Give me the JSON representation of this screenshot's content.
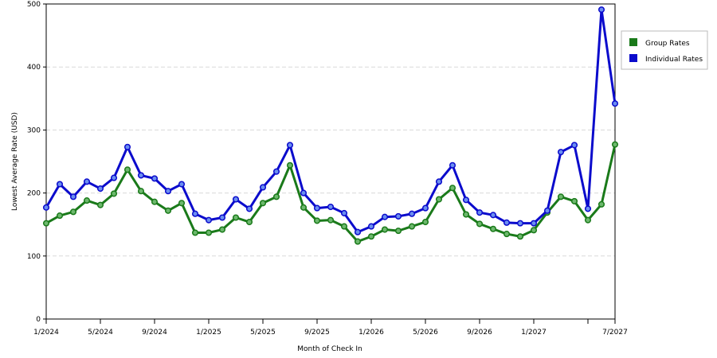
{
  "chart_data": {
    "type": "line",
    "xlabel": "Month of Check In",
    "ylabel": "Lowest Average Rate (USD)",
    "ylim": [
      0,
      500
    ],
    "yticks": [
      0,
      100,
      200,
      300,
      400,
      500
    ],
    "grid": true,
    "legend_position": "right",
    "x_tick_labels": [
      "1/2024",
      "5/2024",
      "9/2024",
      "1/2025",
      "5/2025",
      "9/2025",
      "1/2026",
      "5/2026",
      "9/2026",
      "1/2027",
      "7/2027"
    ],
    "x_tick_index": [
      0,
      4,
      8,
      12,
      16,
      20,
      24,
      28,
      32,
      36,
      42
    ],
    "x_minor_tick_index": [
      40
    ],
    "x": [
      "1/2024",
      "2/2024",
      "3/2024",
      "4/2024",
      "5/2024",
      "6/2024",
      "7/2024",
      "8/2024",
      "9/2024",
      "10/2024",
      "11/2024",
      "12/2024",
      "1/2025",
      "2/2025",
      "3/2025",
      "4/2025",
      "5/2025",
      "6/2025",
      "7/2025",
      "8/2025",
      "9/2025",
      "10/2025",
      "11/2025",
      "12/2025",
      "1/2026",
      "2/2026",
      "3/2026",
      "4/2026",
      "5/2026",
      "6/2026",
      "7/2026",
      "8/2026",
      "9/2026",
      "10/2026",
      "11/2026",
      "12/2026",
      "1/2027",
      "2/2027",
      "3/2027",
      "4/2027",
      "5/2027",
      "6/2027",
      "7/2027"
    ],
    "series": [
      {
        "name": "Group Rates",
        "color": "#1a7a1a",
        "values": [
          152,
          164,
          170,
          188,
          181,
          199,
          237,
          203,
          186,
          172,
          184,
          137,
          137,
          142,
          161,
          154,
          184,
          194,
          244,
          177,
          156,
          157,
          147,
          123,
          131,
          142,
          140,
          147,
          154,
          190,
          208,
          166,
          151,
          143,
          135,
          131,
          141,
          169,
          194,
          187,
          157,
          182,
          277
        ]
      },
      {
        "name": "Individual Rates",
        "color": "#0b0bcc",
        "values": [
          177,
          214,
          194,
          218,
          207,
          224,
          273,
          228,
          223,
          203,
          214,
          167,
          157,
          161,
          190,
          175,
          209,
          234,
          276,
          200,
          176,
          178,
          168,
          138,
          147,
          162,
          163,
          167,
          176,
          218,
          244,
          189,
          169,
          165,
          153,
          152,
          152,
          172,
          265,
          276,
          175,
          491,
          342
        ]
      }
    ]
  }
}
